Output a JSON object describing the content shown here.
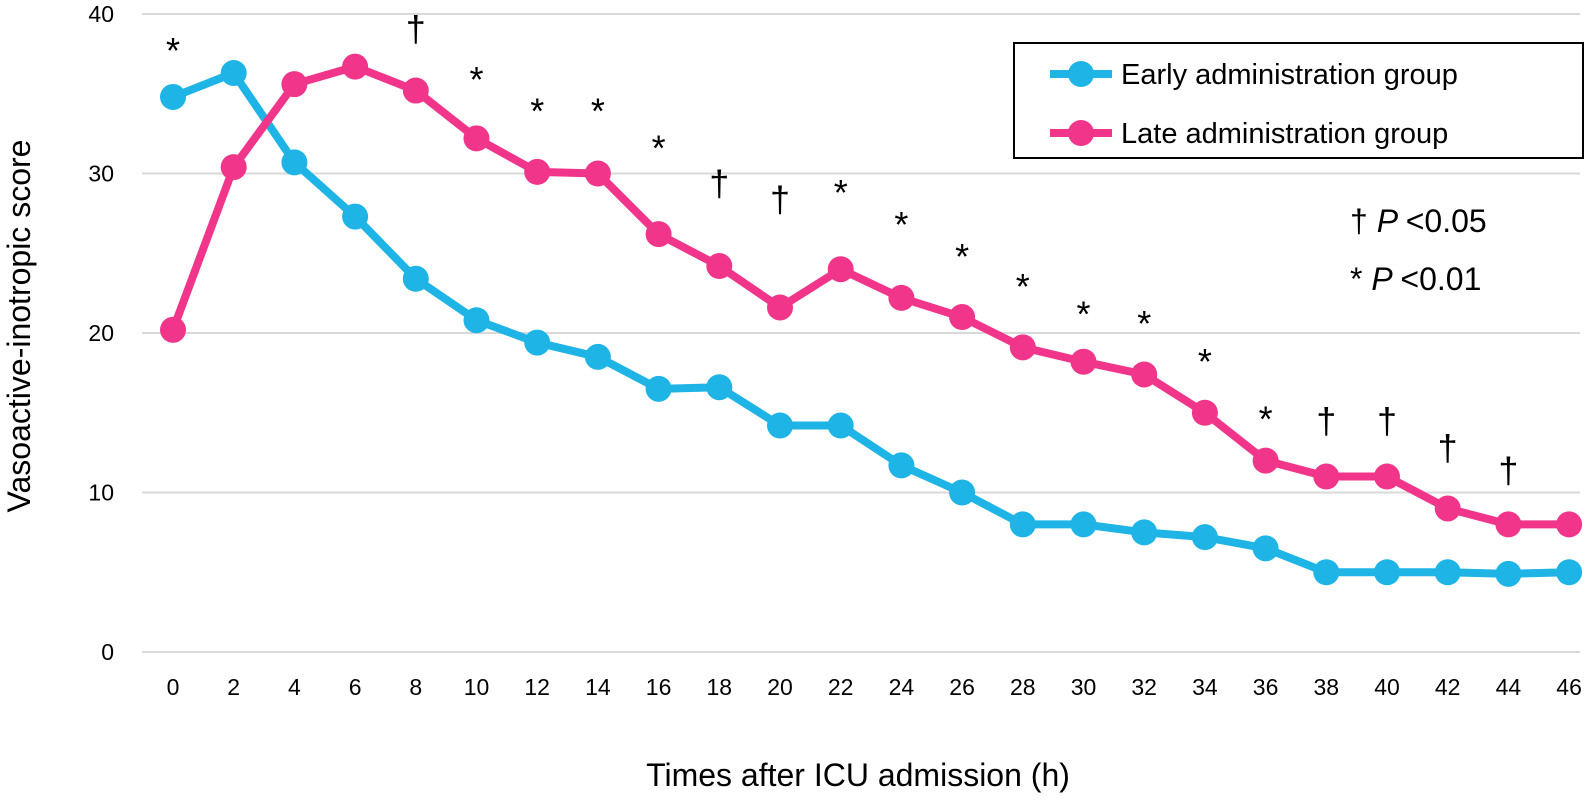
{
  "chart_data": {
    "type": "line",
    "title": "",
    "xlabel": "Times after ICU admission (h)",
    "ylabel": "Vasoactive-inotropic score",
    "ylim": [
      0,
      40
    ],
    "yticks": [
      0,
      10,
      20,
      30,
      40
    ],
    "grid": true,
    "legend_position": "top-right",
    "x": [
      0,
      2,
      4,
      6,
      8,
      10,
      12,
      14,
      16,
      18,
      20,
      22,
      24,
      26,
      28,
      30,
      32,
      34,
      36,
      38,
      40,
      42,
      44,
      46
    ],
    "series": [
      {
        "name": "Early administration group",
        "color": "#1EB4E6",
        "values": [
          34.8,
          36.3,
          30.7,
          27.3,
          23.4,
          20.8,
          19.4,
          18.5,
          16.5,
          16.6,
          14.2,
          14.2,
          11.7,
          10.0,
          8.0,
          8.0,
          7.5,
          7.2,
          6.5,
          5.0,
          5.0,
          5.0,
          4.9,
          5.0
        ]
      },
      {
        "name": "Late administration group",
        "color": "#F0358A",
        "values": [
          20.2,
          30.4,
          35.6,
          36.7,
          35.2,
          32.2,
          30.1,
          30.0,
          26.2,
          24.2,
          21.6,
          24.0,
          22.2,
          21.0,
          19.1,
          18.2,
          17.4,
          15.0,
          12.0,
          11.0,
          11.0,
          9.0,
          8.0,
          8.0
        ]
      }
    ],
    "significance": [
      {
        "x": 0,
        "mark": "*",
        "y": 38.3
      },
      {
        "x": 8,
        "mark": "†",
        "y": 39.2
      },
      {
        "x": 10,
        "mark": "*",
        "y": 36.5
      },
      {
        "x": 12,
        "mark": "*",
        "y": 34.5
      },
      {
        "x": 14,
        "mark": "*",
        "y": 34.5
      },
      {
        "x": 16,
        "mark": "*",
        "y": 32.2
      },
      {
        "x": 18,
        "mark": "†",
        "y": 29.5
      },
      {
        "x": 20,
        "mark": "†",
        "y": 28.5
      },
      {
        "x": 22,
        "mark": "*",
        "y": 29.4
      },
      {
        "x": 24,
        "mark": "*",
        "y": 27.4
      },
      {
        "x": 26,
        "mark": "*",
        "y": 25.4
      },
      {
        "x": 28,
        "mark": "*",
        "y": 23.5
      },
      {
        "x": 30,
        "mark": "*",
        "y": 21.8
      },
      {
        "x": 32,
        "mark": "*",
        "y": 21.2
      },
      {
        "x": 34,
        "mark": "*",
        "y": 18.8
      },
      {
        "x": 36,
        "mark": "*",
        "y": 15.2
      },
      {
        "x": 38,
        "mark": "†",
        "y": 14.6
      },
      {
        "x": 40,
        "mark": "†",
        "y": 14.6
      },
      {
        "x": 42,
        "mark": "†",
        "y": 12.9
      },
      {
        "x": 44,
        "mark": "†",
        "y": 11.5
      }
    ],
    "significance_key": [
      {
        "symbol": "†",
        "p_label": "P",
        "threshold": "<0.05"
      },
      {
        "symbol": "*",
        "p_label": "P",
        "threshold": "<0.01"
      }
    ]
  }
}
